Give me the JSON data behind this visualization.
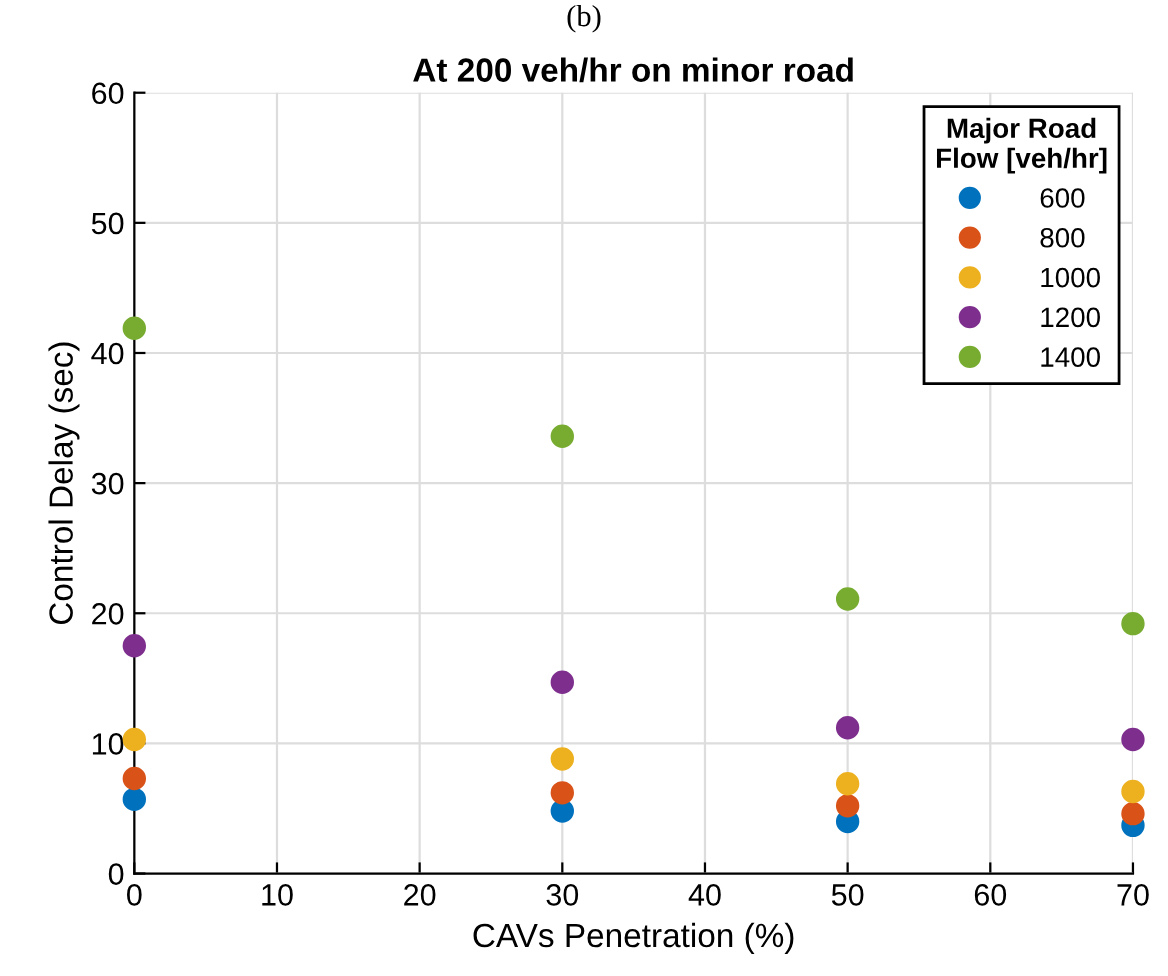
{
  "chart_data": {
    "type": "scatter",
    "title": "At 200 veh/hr on minor road",
    "xlabel": "CAVs Penetration (%)",
    "ylabel": "Control Delay (sec)",
    "legend_title": "Major Road\nFlow [veh/hr]",
    "annotations": [
      "(b)"
    ],
    "x": [
      0,
      30,
      50,
      70
    ],
    "series": [
      {
        "name": "600",
        "color": "#0072bd",
        "values": [
          5.7,
          4.8,
          4.0,
          3.7
        ]
      },
      {
        "name": "800",
        "color": "#d95319",
        "values": [
          7.3,
          6.2,
          5.2,
          4.6
        ]
      },
      {
        "name": "1000",
        "color": "#edb120",
        "values": [
          10.3,
          8.8,
          6.9,
          6.3
        ]
      },
      {
        "name": "1200",
        "color": "#7e2f8e",
        "values": [
          17.5,
          14.7,
          11.2,
          10.3
        ]
      },
      {
        "name": "1400",
        "color": "#77ac30",
        "values": [
          41.9,
          33.6,
          21.1,
          19.2
        ]
      }
    ],
    "xlim": [
      0,
      70
    ],
    "xticks": [
      0,
      10,
      20,
      30,
      40,
      50,
      60,
      70
    ],
    "ylim": [
      0,
      60
    ],
    "yticks": [
      0,
      10,
      20,
      30,
      40,
      50,
      60
    ],
    "grid": true,
    "legend": "top right",
    "marker": "circle"
  }
}
